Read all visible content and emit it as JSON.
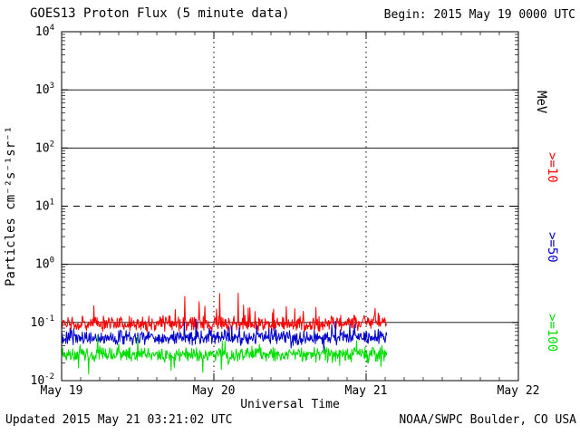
{
  "header": {
    "title": "GOES13 Proton Flux (5 minute data)",
    "begin": "Begin: 2015 May 19 0000 UTC"
  },
  "footer": {
    "updated": "Updated 2015 May 21 03:21:02 UTC",
    "source": "NOAA/SWPC Boulder, CO USA"
  },
  "chart_data": {
    "type": "line",
    "title": "GOES13 Proton Flux (5 minute data)",
    "xlabel": "Universal Time",
    "ylabel": "Particles cm⁻²s⁻¹sr⁻¹",
    "x_tick_labels": [
      "May 19",
      "May 20",
      "May 21",
      "May 22"
    ],
    "x_range_days": 3,
    "y_scale": "log10",
    "y_exponent_range": [
      -2,
      4
    ],
    "y_tick_exponents": [
      4,
      3,
      2,
      1,
      0,
      -1,
      -2
    ],
    "y_tick_labels": [
      "10⁴",
      "10³",
      "10²",
      "10¹",
      "10⁰",
      "10⁻¹",
      "10⁻²"
    ],
    "right_axis_unit": "MeV",
    "gridlines": {
      "horizontal_solid_exponents": [
        3,
        2,
        0,
        -1
      ],
      "horizontal_dashed_exponents": [
        1
      ],
      "vertical_dotted_days": [
        1,
        2
      ]
    },
    "series": [
      {
        "label": ">=10",
        "color": "#ff0000",
        "baseline_flux": 0.095,
        "flux_range": [
          0.07,
          0.35
        ]
      },
      {
        "label": ">=50",
        "color": "#0000cc",
        "baseline_flux": 0.055,
        "flux_range": [
          0.03,
          0.13
        ]
      },
      {
        "label": ">=100",
        "color": "#00dd00",
        "baseline_flux": 0.028,
        "flux_range": [
          0.013,
          0.06
        ]
      }
    ],
    "points_per_day": 288,
    "data_end_day": 2.14
  }
}
